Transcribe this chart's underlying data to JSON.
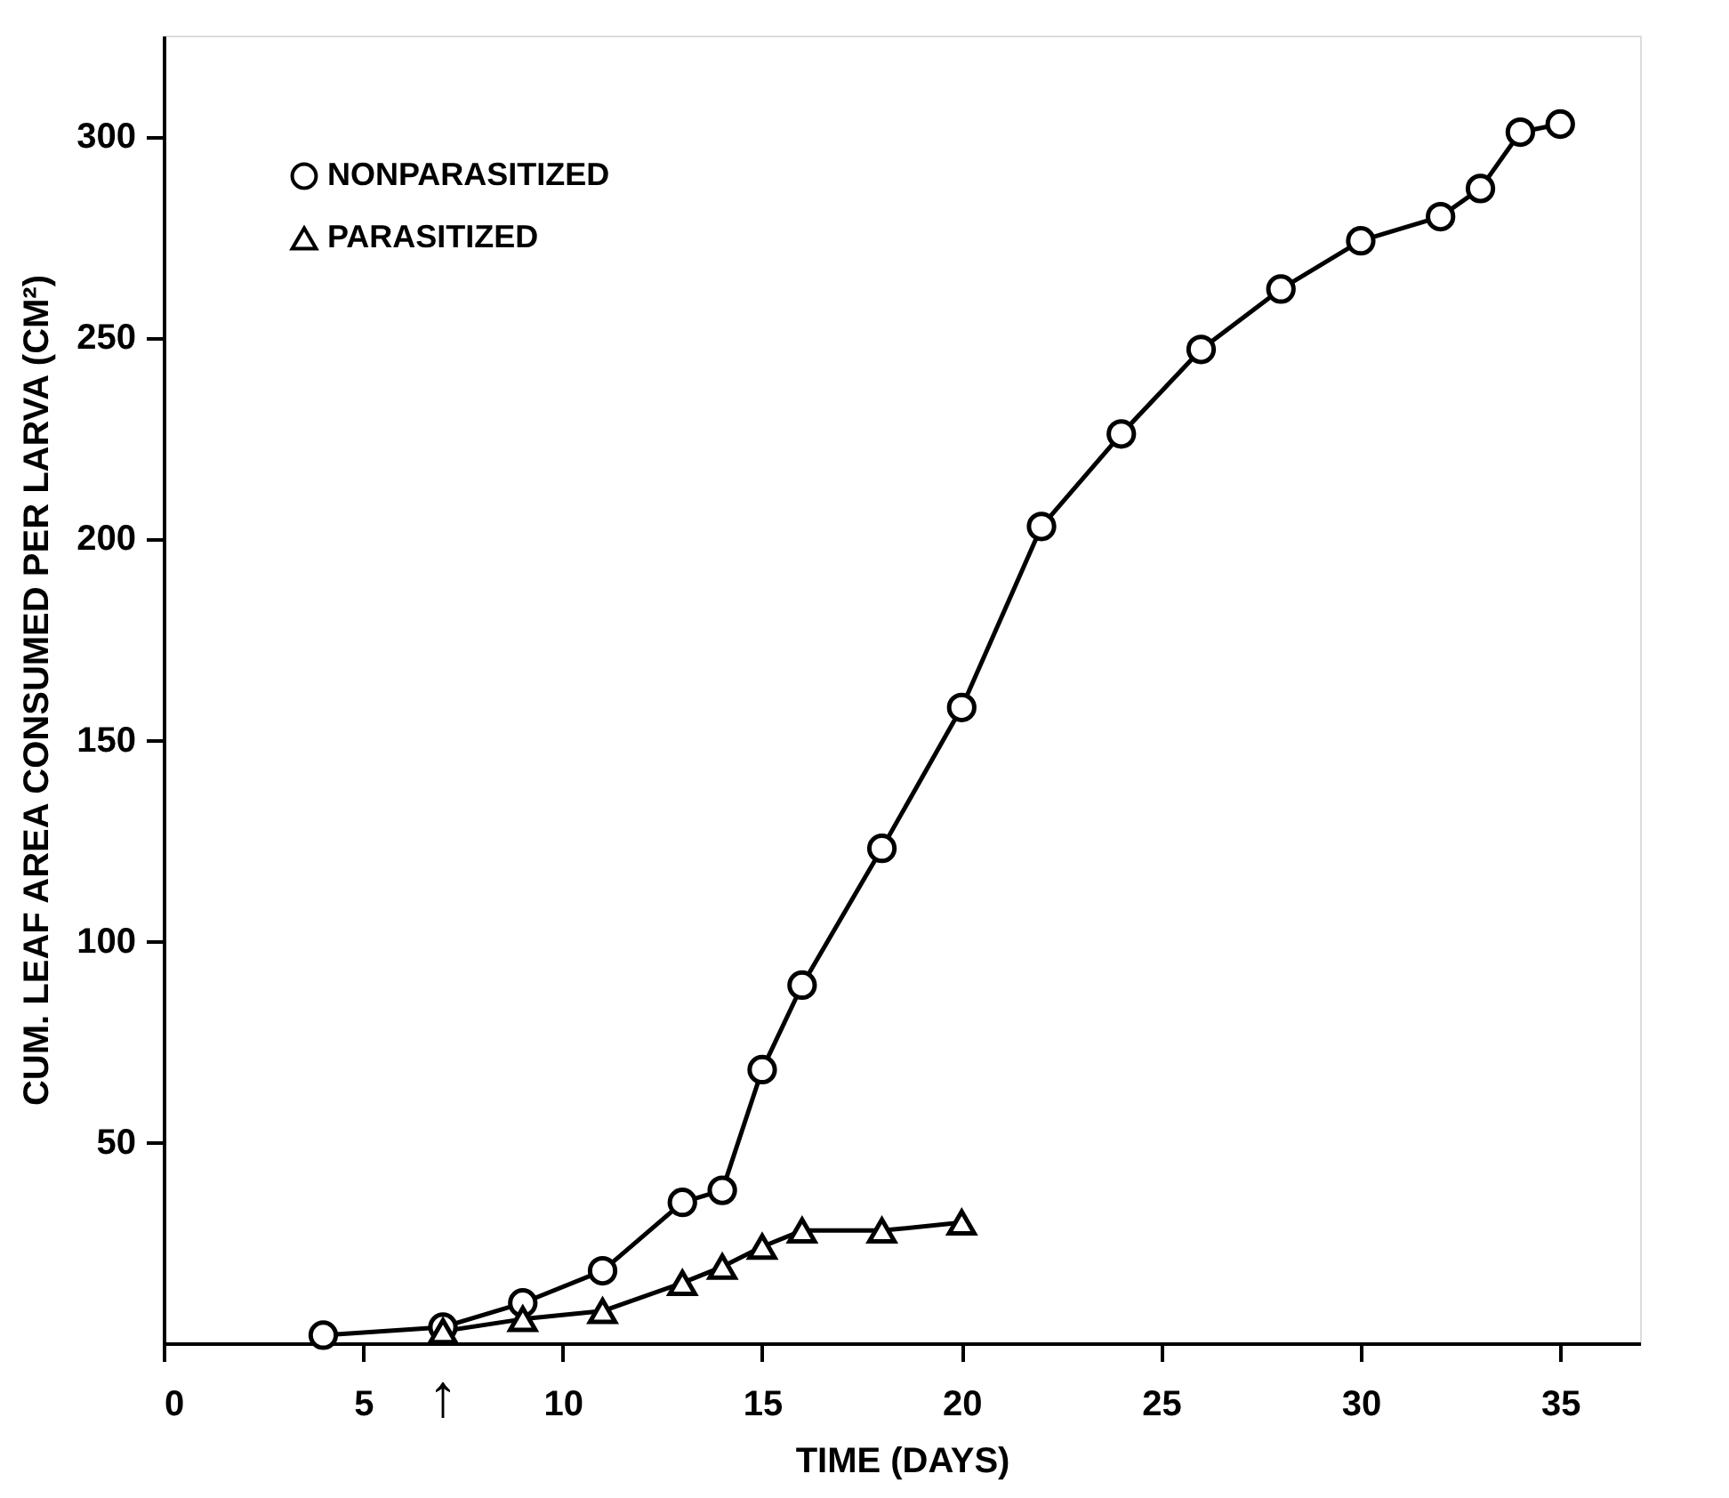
{
  "chart_data": {
    "type": "line",
    "xlabel": "TIME (DAYS)",
    "ylabel": "CUM. LEAF AREA CONSUMED PER LARVA (CM²)",
    "xlim": [
      0,
      37
    ],
    "xticks": [
      0,
      5,
      10,
      15,
      20,
      25,
      30,
      35
    ],
    "ylim": [
      0,
      325
    ],
    "yticks": [
      50,
      100,
      150,
      200,
      250,
      300
    ],
    "grid": false,
    "legend": "top left",
    "line_style": "solid",
    "annotations": [
      "↑"
    ],
    "series": [
      {
        "name": "NONPARASITIZED",
        "color": "#000000",
        "marker": "circle",
        "x": [
          4,
          7,
          9,
          11,
          13,
          14,
          15,
          16,
          18,
          20,
          22,
          24,
          26,
          28,
          30,
          32,
          33,
          34,
          35
        ],
        "values": [
          2,
          4,
          10,
          18,
          35,
          38,
          68,
          89,
          123,
          158,
          203,
          226,
          247,
          262,
          274,
          280,
          287,
          301,
          303
        ]
      },
      {
        "name": "PARASITIZED",
        "color": "#000000",
        "marker": "triangle",
        "x": [
          7,
          9,
          11,
          13,
          14,
          15,
          16,
          18,
          20
        ],
        "values": [
          3,
          6,
          8,
          15,
          19,
          24,
          28,
          28,
          30
        ]
      }
    ]
  }
}
